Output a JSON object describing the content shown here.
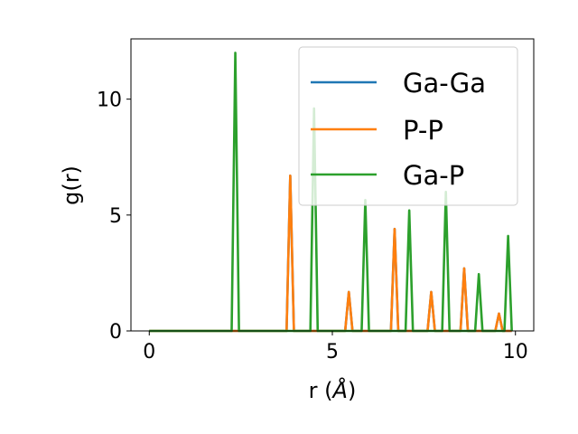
{
  "chart_data": {
    "type": "line",
    "title": "",
    "xlabel": "r (",
    "xlabel_symbol": "Å",
    "xlabel_close": ")",
    "ylabel": "g(r)",
    "xlim": [
      -0.5,
      10.5
    ],
    "ylim": [
      0,
      12.6
    ],
    "xticks": [
      0,
      5,
      10
    ],
    "yticks": [
      0,
      5,
      10
    ],
    "grid": false,
    "legend_position": "top-right",
    "series": [
      {
        "name": "Ga-Ga",
        "color": "#1f77b4",
        "peaks": [
          {
            "x": 3.85,
            "y": 6.7
          },
          {
            "x": 5.45,
            "y": 1.68
          },
          {
            "x": 6.7,
            "y": 4.4
          },
          {
            "x": 7.7,
            "y": 1.68
          },
          {
            "x": 8.6,
            "y": 2.7
          },
          {
            "x": 9.55,
            "y": 0.75
          }
        ]
      },
      {
        "name": "P-P",
        "color": "#ff7f0e",
        "peaks": [
          {
            "x": 3.85,
            "y": 6.7
          },
          {
            "x": 5.45,
            "y": 1.68
          },
          {
            "x": 6.7,
            "y": 4.4
          },
          {
            "x": 7.7,
            "y": 1.68
          },
          {
            "x": 8.6,
            "y": 2.7
          },
          {
            "x": 9.55,
            "y": 0.75
          }
        ]
      },
      {
        "name": "Ga-P",
        "color": "#2ca02c",
        "peaks": [
          {
            "x": 2.35,
            "y": 12.0
          },
          {
            "x": 4.5,
            "y": 9.6
          },
          {
            "x": 5.9,
            "y": 5.65
          },
          {
            "x": 7.1,
            "y": 5.2
          },
          {
            "x": 8.1,
            "y": 6.0
          },
          {
            "x": 9.0,
            "y": 2.45
          },
          {
            "x": 9.8,
            "y": 4.1
          }
        ]
      }
    ],
    "x_range": [
      0,
      9.9
    ]
  }
}
